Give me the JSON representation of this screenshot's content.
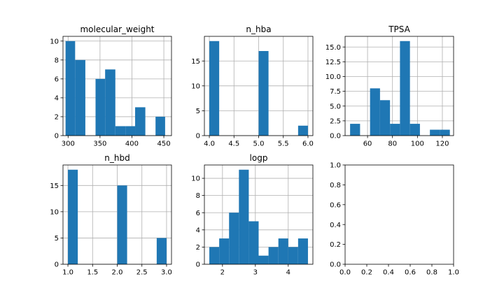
{
  "chart_data": [
    {
      "type": "bar",
      "title": "molecular_weight",
      "xlabel": "",
      "ylabel": "",
      "xlim": [
        292,
        462
      ],
      "ylim": [
        0,
        10.5
      ],
      "xticks": [
        300,
        350,
        400,
        450
      ],
      "yticks": [
        0,
        2,
        4,
        6,
        8,
        10
      ],
      "grid": true,
      "color": "#1f77b4",
      "bins": [
        {
          "x0": 296,
          "x1": 311,
          "count": 10
        },
        {
          "x0": 311,
          "x1": 327,
          "count": 8
        },
        {
          "x0": 327,
          "x1": 343,
          "count": 0
        },
        {
          "x0": 343,
          "x1": 358,
          "count": 6
        },
        {
          "x0": 358,
          "x1": 374,
          "count": 7
        },
        {
          "x0": 374,
          "x1": 390,
          "count": 1
        },
        {
          "x0": 390,
          "x1": 405,
          "count": 1
        },
        {
          "x0": 405,
          "x1": 421,
          "count": 3
        },
        {
          "x0": 421,
          "x1": 437,
          "count": 0
        },
        {
          "x0": 437,
          "x1": 452,
          "count": 2
        }
      ]
    },
    {
      "type": "bar",
      "title": "n_hba",
      "xlabel": "",
      "ylabel": "",
      "xlim": [
        3.9,
        6.1
      ],
      "ylim": [
        0,
        19.95
      ],
      "xticks": [
        4.0,
        4.5,
        5.0,
        5.5,
        6.0
      ],
      "xticklabels": [
        "4.0",
        "4.5",
        "5.0",
        "5.5",
        "6.0"
      ],
      "yticks": [
        0,
        5,
        10,
        15
      ],
      "grid": true,
      "color": "#1f77b4",
      "bins": [
        {
          "x0": 4.0,
          "x1": 4.2,
          "count": 19
        },
        {
          "x0": 4.2,
          "x1": 4.4,
          "count": 0
        },
        {
          "x0": 4.4,
          "x1": 4.6,
          "count": 0
        },
        {
          "x0": 4.6,
          "x1": 4.8,
          "count": 0
        },
        {
          "x0": 4.8,
          "x1": 5.0,
          "count": 0
        },
        {
          "x0": 5.0,
          "x1": 5.2,
          "count": 17
        },
        {
          "x0": 5.2,
          "x1": 5.4,
          "count": 0
        },
        {
          "x0": 5.4,
          "x1": 5.6,
          "count": 0
        },
        {
          "x0": 5.6,
          "x1": 5.8,
          "count": 0
        },
        {
          "x0": 5.8,
          "x1": 6.0,
          "count": 2
        }
      ]
    },
    {
      "type": "bar",
      "title": "TPSA",
      "xlabel": "",
      "ylabel": "",
      "xlim": [
        42,
        129
      ],
      "ylim": [
        0,
        16.8
      ],
      "xticks": [
        60,
        80,
        100,
        120
      ],
      "yticks": [
        0.0,
        2.5,
        5.0,
        7.5,
        10.0,
        12.5,
        15.0
      ],
      "yticklabels": [
        "0.0",
        "2.5",
        "5.0",
        "7.5",
        "10.0",
        "12.5",
        "15.0"
      ],
      "grid": true,
      "color": "#1f77b4",
      "bins": [
        {
          "x0": 46,
          "x1": 54,
          "count": 2
        },
        {
          "x0": 54,
          "x1": 62,
          "count": 0
        },
        {
          "x0": 62,
          "x1": 70,
          "count": 8
        },
        {
          "x0": 70,
          "x1": 78,
          "count": 6
        },
        {
          "x0": 78,
          "x1": 86,
          "count": 2
        },
        {
          "x0": 86,
          "x1": 94,
          "count": 16
        },
        {
          "x0": 94,
          "x1": 102,
          "count": 2
        },
        {
          "x0": 102,
          "x1": 110,
          "count": 0
        },
        {
          "x0": 110,
          "x1": 118,
          "count": 1
        },
        {
          "x0": 118,
          "x1": 126,
          "count": 1
        }
      ]
    },
    {
      "type": "bar",
      "title": "n_hbd",
      "xlabel": "",
      "ylabel": "",
      "xlim": [
        0.9,
        3.1
      ],
      "ylim": [
        0,
        18.9
      ],
      "xticks": [
        1.0,
        1.5,
        2.0,
        2.5,
        3.0
      ],
      "xticklabels": [
        "1.0",
        "1.5",
        "2.0",
        "2.5",
        "3.0"
      ],
      "yticks": [
        0,
        5,
        10,
        15
      ],
      "grid": true,
      "color": "#1f77b4",
      "bins": [
        {
          "x0": 1.0,
          "x1": 1.2,
          "count": 18
        },
        {
          "x0": 1.2,
          "x1": 1.4,
          "count": 0
        },
        {
          "x0": 1.4,
          "x1": 1.6,
          "count": 0
        },
        {
          "x0": 1.6,
          "x1": 1.8,
          "count": 0
        },
        {
          "x0": 1.8,
          "x1": 2.0,
          "count": 0
        },
        {
          "x0": 2.0,
          "x1": 2.2,
          "count": 15
        },
        {
          "x0": 2.2,
          "x1": 2.4,
          "count": 0
        },
        {
          "x0": 2.4,
          "x1": 2.6,
          "count": 0
        },
        {
          "x0": 2.6,
          "x1": 2.8,
          "count": 0
        },
        {
          "x0": 2.8,
          "x1": 3.0,
          "count": 5
        }
      ]
    },
    {
      "type": "bar",
      "title": "logp",
      "xlabel": "",
      "ylabel": "",
      "xlim": [
        1.45,
        4.75
      ],
      "ylim": [
        0,
        11.55
      ],
      "xticks": [
        2,
        3,
        4
      ],
      "yticks": [
        0,
        2,
        4,
        6,
        8,
        10
      ],
      "grid": true,
      "color": "#1f77b4",
      "bins": [
        {
          "x0": 1.6,
          "x1": 1.9,
          "count": 2
        },
        {
          "x0": 1.9,
          "x1": 2.2,
          "count": 3
        },
        {
          "x0": 2.2,
          "x1": 2.5,
          "count": 6
        },
        {
          "x0": 2.5,
          "x1": 2.8,
          "count": 11
        },
        {
          "x0": 2.8,
          "x1": 3.1,
          "count": 5
        },
        {
          "x0": 3.1,
          "x1": 3.4,
          "count": 1
        },
        {
          "x0": 3.4,
          "x1": 3.7,
          "count": 2
        },
        {
          "x0": 3.7,
          "x1": 4.0,
          "count": 3
        },
        {
          "x0": 4.0,
          "x1": 4.3,
          "count": 2
        },
        {
          "x0": 4.3,
          "x1": 4.6,
          "count": 3
        }
      ]
    },
    {
      "type": "empty",
      "title": "",
      "xlabel": "",
      "ylabel": "",
      "xlim": [
        0,
        1
      ],
      "ylim": [
        0,
        1
      ],
      "xticks": [
        0.0,
        0.2,
        0.4,
        0.6,
        0.8,
        1.0
      ],
      "xticklabels": [
        "0.0",
        "0.2",
        "0.4",
        "0.6",
        "0.8",
        "1.0"
      ],
      "yticks": [
        0.0,
        0.2,
        0.4,
        0.6,
        0.8,
        1.0
      ],
      "yticklabels": [
        "0.0",
        "0.2",
        "0.4",
        "0.6",
        "0.8",
        "1.0"
      ],
      "grid": false,
      "bins": []
    }
  ]
}
